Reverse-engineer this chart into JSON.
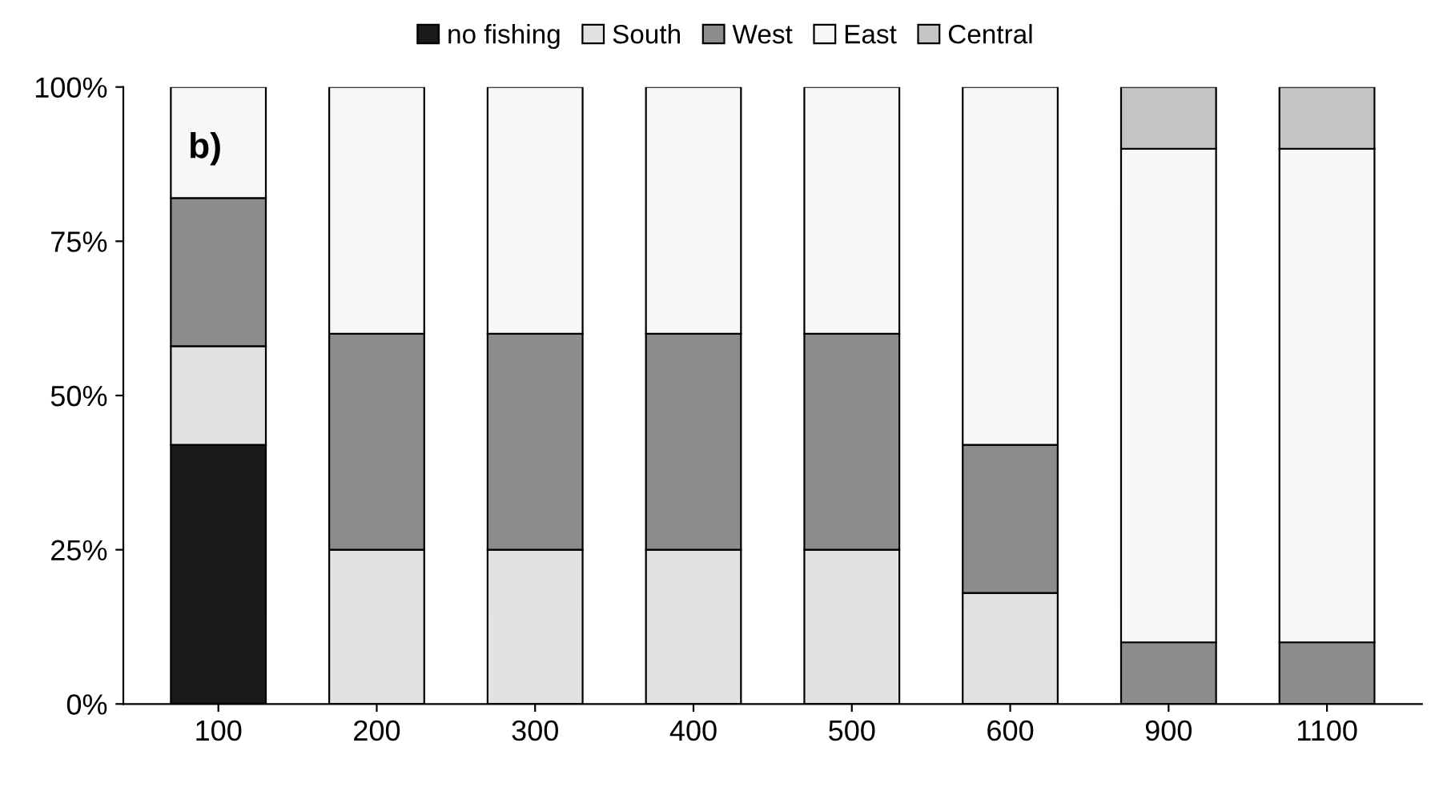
{
  "chart_data": {
    "type": "bar",
    "stacked": true,
    "categories": [
      "100",
      "200",
      "300",
      "400",
      "500",
      "600",
      "900",
      "1100"
    ],
    "series": [
      {
        "name": "no fishing",
        "color": "#1a1a1a",
        "values": [
          42,
          null,
          null,
          null,
          null,
          null,
          null,
          null
        ]
      },
      {
        "name": "South",
        "color": "#e2e2e2",
        "values": [
          16,
          25,
          25,
          25,
          25,
          18,
          null,
          null
        ]
      },
      {
        "name": "West",
        "color": "#8c8c8c",
        "values": [
          24,
          35,
          35,
          35,
          35,
          24,
          10,
          10
        ]
      },
      {
        "name": "East",
        "color": "#f7f7f7",
        "values": [
          18,
          40,
          40,
          40,
          40,
          58,
          80,
          80
        ]
      },
      {
        "name": "Central",
        "color": "#c4c4c4",
        "values": [
          null,
          null,
          null,
          null,
          null,
          null,
          10,
          10
        ]
      }
    ],
    "ylim": [
      0,
      100
    ],
    "yticks": [
      {
        "value": 0,
        "label": "0%"
      },
      {
        "value": 25,
        "label": "25%"
      },
      {
        "value": 50,
        "label": "50%"
      },
      {
        "value": 75,
        "label": "75%"
      },
      {
        "value": 100,
        "label": "100%"
      }
    ],
    "annotations": [
      "b)"
    ],
    "legend": "top",
    "grid": false
  }
}
